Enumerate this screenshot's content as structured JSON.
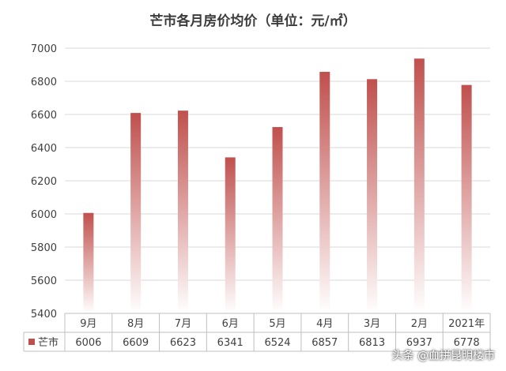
{
  "chart_data": {
    "type": "bar",
    "title": "芒市各月房价均价（单位：元/㎡）",
    "categories": [
      "9月",
      "8月",
      "7月",
      "6月",
      "5月",
      "4月",
      "3月",
      "2月",
      "2021年"
    ],
    "series": [
      {
        "name": "芒市",
        "values": [
          6006,
          6609,
          6623,
          6341,
          6524,
          6857,
          6813,
          6937,
          6778
        ]
      }
    ],
    "value_labels": [
      "6006",
      "6609",
      "6623",
      "6341",
      "6524",
      "6857",
      "6813",
      "6937",
      "6778"
    ],
    "ylim": [
      5400,
      7000
    ],
    "yticks": [
      5400,
      5600,
      5800,
      6000,
      6200,
      6400,
      6600,
      6800,
      7000
    ],
    "ytick_labels": [
      "5400",
      "5600",
      "5800",
      "6000",
      "6200",
      "6400",
      "6600",
      "6800",
      "7000"
    ],
    "grid": true,
    "legend": "data-table",
    "bar_color_top": "#c0504d",
    "bar_color_bottom": "#ffffff"
  },
  "watermark": "头条 @血拼昆明楼市"
}
